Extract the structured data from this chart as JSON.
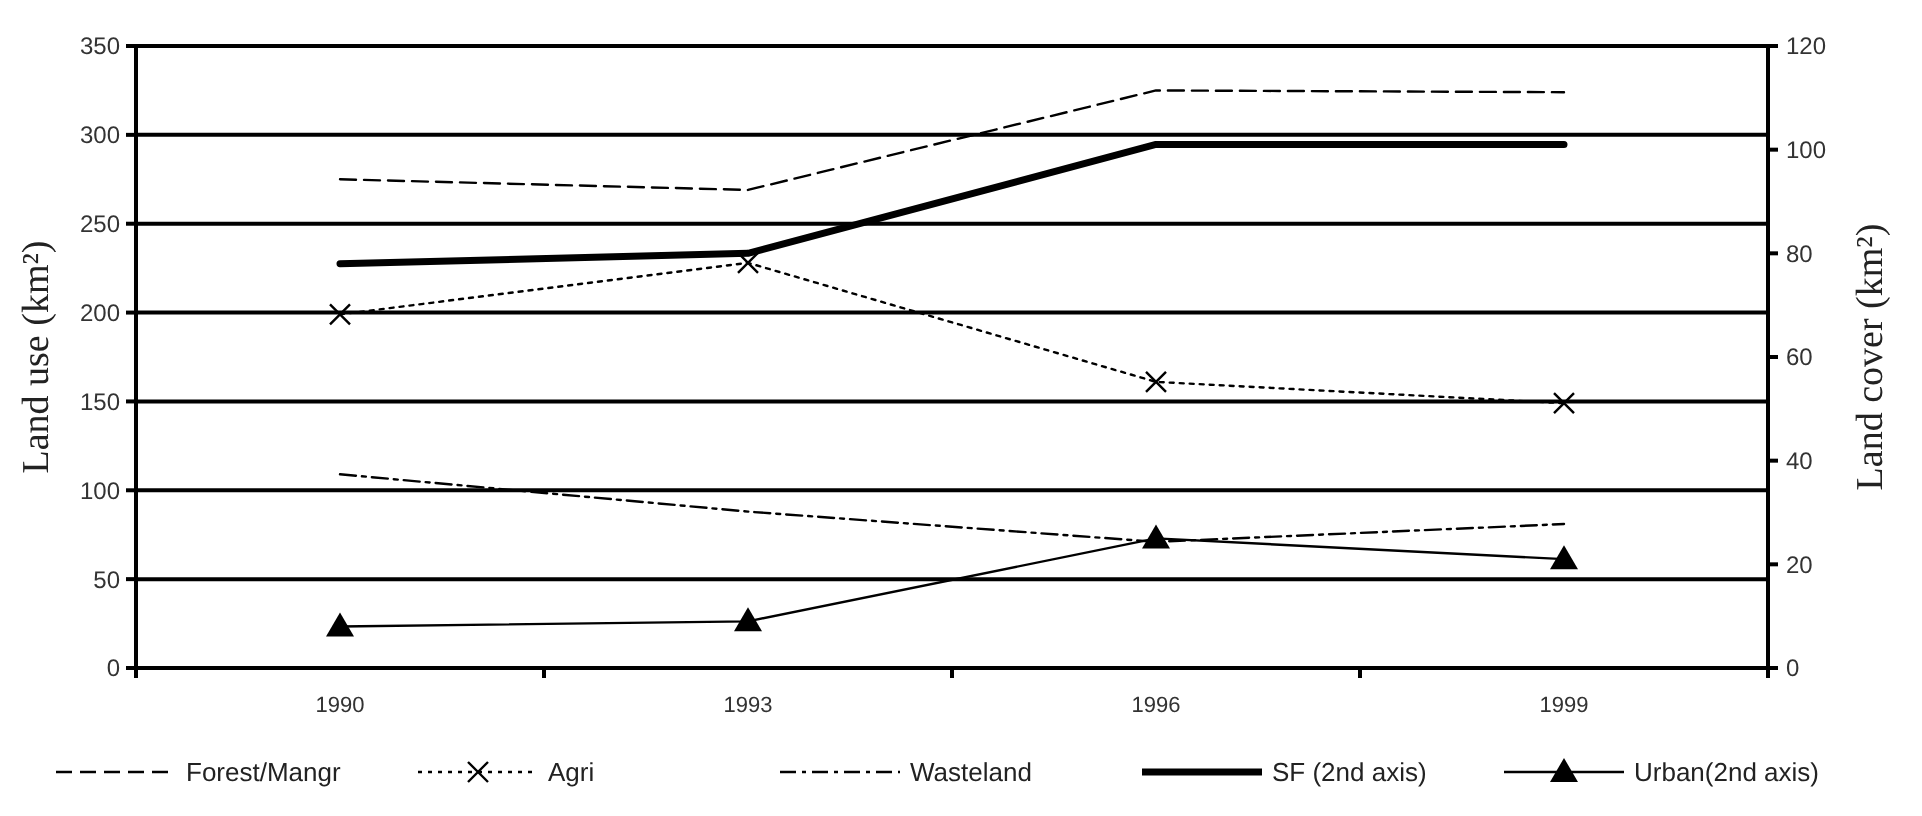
{
  "chart_data": {
    "type": "line",
    "ylabel": "Land use (km²)",
    "y2label": "Land cover (km²)",
    "categories": [
      "1990",
      "1993",
      "1996",
      "1999"
    ],
    "ylim": [
      0,
      350
    ],
    "yticks": [
      0,
      50,
      100,
      150,
      200,
      250,
      300,
      350
    ],
    "y2lim": [
      0,
      120
    ],
    "y2ticks": [
      0,
      20,
      40,
      60,
      80,
      100,
      120
    ],
    "grid": "y",
    "legend": "bottom",
    "series": [
      {
        "name": "Forest/Mangr",
        "color": "#000000",
        "values": [
          275,
          269,
          325,
          324
        ],
        "line_style": "dashed",
        "marker": "none"
      },
      {
        "name": "Agri",
        "color": "#000000",
        "values": [
          199,
          228,
          161,
          149
        ],
        "line_style": "dotted",
        "marker": "cross"
      },
      {
        "name": "Wasteland",
        "color": "#000000",
        "values": [
          109,
          88,
          71,
          81
        ],
        "line_style": "dashdot",
        "marker": "none"
      },
      {
        "name": "SF (2nd axis)",
        "color": "#000000",
        "values": [
          78,
          80,
          101,
          101
        ],
        "axis": "y2",
        "line_style": "solid",
        "marker": "none"
      },
      {
        "name": "Urban(2nd axis)",
        "color": "#000000",
        "values": [
          8,
          9,
          25,
          21
        ],
        "axis": "y2",
        "line_style": "solid",
        "marker": "triangle"
      }
    ]
  }
}
